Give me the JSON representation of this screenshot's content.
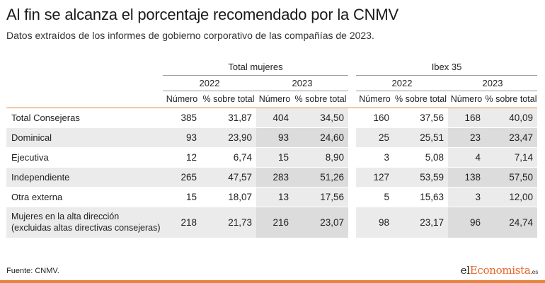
{
  "title": "Al fin se alcanza el porcentaje recomendado por la CNMV",
  "subtitle": "Datos extraídos de los informes de gobierno corporativo de las compañías de 2023.",
  "groups": {
    "total": "Total mujeres",
    "ibex": "Ibex 35"
  },
  "years": {
    "y1": "2022",
    "y2": "2023"
  },
  "cols": {
    "numero": "Número",
    "pct": "% sobre total"
  },
  "rows": [
    {
      "label": "Total Consejeras",
      "values": [
        "385",
        "31,87",
        "404",
        "34,50",
        "160",
        "37,56",
        "168",
        "40,09"
      ]
    },
    {
      "label": "Dominical",
      "values": [
        "93",
        "23,90",
        "93",
        "24,60",
        "25",
        "25,51",
        "23",
        "23,47"
      ]
    },
    {
      "label": "Ejecutiva",
      "values": [
        "12",
        "6,74",
        "15",
        "8,90",
        "3",
        "5,08",
        "4",
        "7,14"
      ]
    },
    {
      "label": "Independiente",
      "values": [
        "265",
        "47,57",
        "283",
        "51,26",
        "127",
        "53,59",
        "138",
        "57,50"
      ]
    },
    {
      "label": "Otra externa",
      "values": [
        "15",
        "18,07",
        "13",
        "17,56",
        "5",
        "15,63",
        "3",
        "12,00"
      ]
    },
    {
      "label_line1": "Mujeres en la alta dirección",
      "label_line2": "(excluidas altas directivas consejeras)",
      "values": [
        "218",
        "21,73",
        "216",
        "23,07",
        "98",
        "23,17",
        "96",
        "24,74"
      ]
    }
  ],
  "source": "Fuente: CNMV.",
  "logo": {
    "part1": "el",
    "part2": "Economista",
    "part3": ".es"
  },
  "colors": {
    "accent": "#e8833a",
    "row_alt": "#ebebeb",
    "col_shade": "#dcdcdc"
  }
}
